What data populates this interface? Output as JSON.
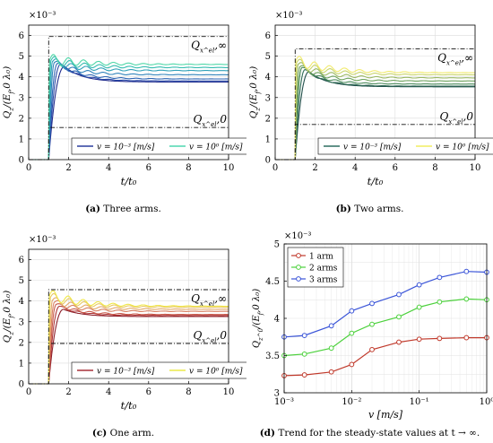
{
  "captions": {
    "a": {
      "tag": "(a)",
      "text": "Three arms."
    },
    "b": {
      "tag": "(b)",
      "text": "Two arms."
    },
    "c": {
      "tag": "(c)",
      "text": "One arm."
    },
    "d": {
      "tag": "(d)",
      "text": "Trend for the steady-state values at t → ∞."
    }
  },
  "chart_data": [
    {
      "id": "a",
      "type": "line",
      "multiplier": "×10⁻³",
      "xlabel": "t/t₀",
      "ylabel": "Q_z/(E_f,0 λ₀)",
      "xlim": [
        0,
        10
      ],
      "ylim": [
        0,
        6.5
      ],
      "xticks": [
        0,
        2,
        4,
        6,
        8,
        10
      ],
      "yticks": [
        0,
        1,
        2,
        3,
        4,
        5,
        6
      ],
      "grid": true,
      "legend": {
        "position": "bottom-center",
        "entries": [
          {
            "text": "v = 10⁻³ [m/s]",
            "color": "#2b3f9e"
          },
          {
            "text": "v = 10⁰ [m/s]",
            "color": "#4fd7b0"
          }
        ]
      },
      "colors": [
        "#1f2a8c",
        "#2a4aa8",
        "#2e66b4",
        "#2f82ba",
        "#30a0b8",
        "#34bcb0",
        "#4fd7a8"
      ],
      "rise_starts": [
        1.0,
        1.0,
        1.0,
        1.0,
        1.0,
        1.0,
        1.0
      ],
      "peak_times": [
        1.8,
        1.6,
        1.45,
        1.3,
        1.2,
        1.12,
        1.06
      ],
      "peak_values": [
        4.5,
        4.6,
        4.65,
        4.7,
        4.75,
        4.8,
        4.85
      ],
      "final_values": [
        3.75,
        3.8,
        3.9,
        4.1,
        4.3,
        4.45,
        4.6
      ],
      "reference_lines": [
        {
          "label": "Q_x^el,∞",
          "value": 5.95
        },
        {
          "label": "Q_x^el,0",
          "value": 1.55
        }
      ],
      "step_time": 1.0
    },
    {
      "id": "b",
      "type": "line",
      "multiplier": "×10⁻³",
      "xlabel": "t/t₀",
      "ylabel": "Q_z/(E_f,0 λ₀)",
      "xlim": [
        0,
        10
      ],
      "ylim": [
        0,
        6.5
      ],
      "xticks": [
        0,
        2,
        4,
        6,
        8,
        10
      ],
      "yticks": [
        0,
        1,
        2,
        3,
        4,
        5,
        6
      ],
      "grid": true,
      "legend": {
        "position": "bottom-center",
        "entries": [
          {
            "text": "v = 10⁻³ [m/s]",
            "color": "#2f6f60"
          },
          {
            "text": "v = 10⁰ [m/s]",
            "color": "#f0ee60"
          }
        ]
      },
      "colors": [
        "#214f4a",
        "#2f6b56",
        "#4a8a5a",
        "#6ea25e",
        "#9cb964",
        "#c9d46a",
        "#f1ea6e"
      ],
      "rise_starts": [
        1.0,
        1.0,
        1.0,
        1.0,
        1.0,
        1.0,
        1.0
      ],
      "peak_times": [
        1.7,
        1.5,
        1.35,
        1.25,
        1.15,
        1.08,
        1.04
      ],
      "peak_values": [
        4.25,
        4.35,
        4.45,
        4.5,
        4.6,
        4.7,
        4.8
      ],
      "final_values": [
        3.52,
        3.55,
        3.65,
        3.8,
        3.95,
        4.1,
        4.2
      ],
      "reference_lines": [
        {
          "label": "Q_x^el,∞",
          "value": 5.35
        },
        {
          "label": "Q_x^el,0",
          "value": 1.7
        }
      ],
      "step_time": 1.0
    },
    {
      "id": "c",
      "type": "line",
      "multiplier": "×10⁻³",
      "xlabel": "t/t₀",
      "ylabel": "Q_z/(E_f,0 λ₀)",
      "xlim": [
        0,
        10
      ],
      "ylim": [
        0,
        6.5
      ],
      "xticks": [
        0,
        2,
        4,
        6,
        8,
        10
      ],
      "yticks": [
        0,
        1,
        2,
        3,
        4,
        5,
        6
      ],
      "grid": true,
      "legend": {
        "position": "bottom-center",
        "entries": [
          {
            "text": "v = 10⁻³ [m/s]",
            "color": "#a8323a"
          },
          {
            "text": "v = 10⁰ [m/s]",
            "color": "#ecea4a"
          }
        ]
      },
      "colors": [
        "#8c1f2a",
        "#b0383a",
        "#c85a4a",
        "#d98062",
        "#e2a86a",
        "#e8c866",
        "#f0e84a"
      ],
      "rise_starts": [
        1.0,
        1.0,
        1.0,
        1.0,
        1.0,
        1.0,
        1.0
      ],
      "peak_times": [
        1.75,
        1.55,
        1.4,
        1.3,
        1.2,
        1.1,
        1.05
      ],
      "peak_values": [
        3.6,
        3.75,
        3.85,
        3.95,
        4.05,
        4.2,
        4.3
      ],
      "final_values": [
        3.25,
        3.3,
        3.35,
        3.5,
        3.6,
        3.7,
        3.75
      ],
      "reference_lines": [
        {
          "label": "Q_x^el,∞",
          "value": 4.55
        },
        {
          "label": "Q_x^el,0",
          "value": 1.95
        }
      ],
      "step_time": 1.0
    },
    {
      "id": "d",
      "type": "line",
      "xlabel": "v [m/s]",
      "ylabel": "Q_z^0/(E_f,0 λ₀)",
      "multiplier": "×10⁻³",
      "xscale": "log",
      "xlim": [
        0.001,
        1
      ],
      "ylim": [
        3,
        5
      ],
      "xticks": [
        0.001,
        0.01,
        0.1,
        1
      ],
      "xticklabels": [
        "10⁻³",
        "10⁻²",
        "10⁻¹",
        "10⁰"
      ],
      "yticks": [
        3,
        3.5,
        4,
        4.5,
        5
      ],
      "grid": true,
      "legend": {
        "position": "top-left"
      },
      "x": [
        0.001,
        0.002,
        0.005,
        0.01,
        0.02,
        0.05,
        0.1,
        0.2,
        0.5,
        1
      ],
      "series": [
        {
          "name": "1 arm",
          "color": "#c0392b",
          "values": [
            3.23,
            3.24,
            3.28,
            3.38,
            3.58,
            3.68,
            3.72,
            3.73,
            3.74,
            3.74
          ]
        },
        {
          "name": "2 arms",
          "color": "#4cd13c",
          "values": [
            3.5,
            3.52,
            3.6,
            3.8,
            3.92,
            4.02,
            4.15,
            4.22,
            4.26,
            4.25
          ]
        },
        {
          "name": "3 arms",
          "color": "#3b55d8",
          "values": [
            3.75,
            3.77,
            3.9,
            4.1,
            4.2,
            4.32,
            4.45,
            4.55,
            4.63,
            4.62
          ]
        }
      ]
    }
  ]
}
